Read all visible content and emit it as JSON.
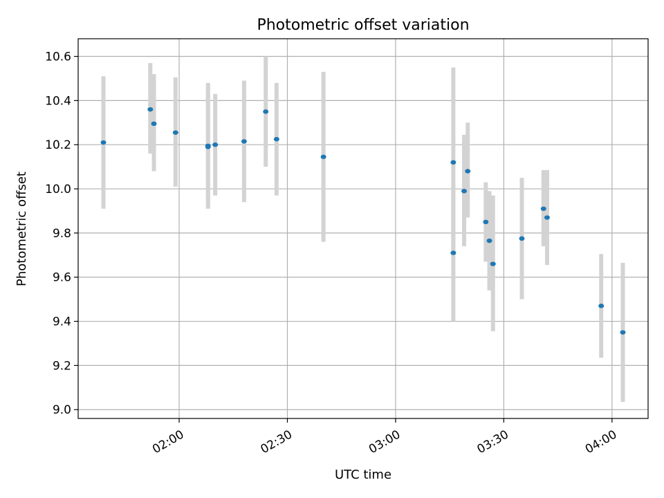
{
  "chart_data": {
    "type": "scatter",
    "title": "Photometric offset variation",
    "xlabel": "UTC time",
    "ylabel": "Photometric offset",
    "grid": true,
    "xlim": [
      "01:32",
      "04:10"
    ],
    "ylim": [
      8.96,
      10.68
    ],
    "x_ticks": [
      "02:00",
      "02:30",
      "03:00",
      "03:30",
      "04:00"
    ],
    "y_ticks": [
      "9.0",
      "9.2",
      "9.4",
      "9.6",
      "9.8",
      "10.0",
      "10.2",
      "10.4",
      "10.6"
    ],
    "point_color": "#1f77b4",
    "errorbar_color": "#d3d3d3",
    "series": [
      {
        "points": [
          {
            "x": "01:39",
            "y": 10.21,
            "ylow": 9.91,
            "yhigh": 10.51
          },
          {
            "x": "01:52",
            "y": 10.36,
            "ylow": 10.16,
            "yhigh": 10.57
          },
          {
            "x": "01:53",
            "y": 10.295,
            "ylow": 10.08,
            "yhigh": 10.52
          },
          {
            "x": "01:59",
            "y": 10.255,
            "ylow": 10.01,
            "yhigh": 10.505
          },
          {
            "x": "02:08",
            "y": 10.195,
            "ylow": 9.91,
            "yhigh": 10.48
          },
          {
            "x": "02:08",
            "y": 10.19,
            "ylow": 9.925,
            "yhigh": 10.46
          },
          {
            "x": "02:10",
            "y": 10.2,
            "ylow": 9.97,
            "yhigh": 10.43
          },
          {
            "x": "02:18",
            "y": 10.215,
            "ylow": 9.94,
            "yhigh": 10.49
          },
          {
            "x": "02:24",
            "y": 10.35,
            "ylow": 10.1,
            "yhigh": 10.6
          },
          {
            "x": "02:27",
            "y": 10.225,
            "ylow": 9.97,
            "yhigh": 10.48
          },
          {
            "x": "02:40",
            "y": 10.145,
            "ylow": 9.76,
            "yhigh": 10.53
          },
          {
            "x": "03:16",
            "y": 10.12,
            "ylow": 9.7,
            "yhigh": 10.55
          },
          {
            "x": "03:16",
            "y": 9.71,
            "ylow": 9.4,
            "yhigh": 10.02
          },
          {
            "x": "03:19",
            "y": 9.99,
            "ylow": 9.74,
            "yhigh": 10.245
          },
          {
            "x": "03:20",
            "y": 10.08,
            "ylow": 9.87,
            "yhigh": 10.3
          },
          {
            "x": "03:25",
            "y": 9.85,
            "ylow": 9.67,
            "yhigh": 10.03
          },
          {
            "x": "03:26",
            "y": 9.765,
            "ylow": 9.54,
            "yhigh": 9.99
          },
          {
            "x": "03:27",
            "y": 9.66,
            "ylow": 9.355,
            "yhigh": 9.97
          },
          {
            "x": "03:35",
            "y": 9.775,
            "ylow": 9.5,
            "yhigh": 10.05
          },
          {
            "x": "03:41",
            "y": 9.91,
            "ylow": 9.74,
            "yhigh": 10.085
          },
          {
            "x": "03:42",
            "y": 9.87,
            "ylow": 9.655,
            "yhigh": 10.085
          },
          {
            "x": "03:57",
            "y": 9.47,
            "ylow": 9.235,
            "yhigh": 9.705
          },
          {
            "x": "04:03",
            "y": 9.35,
            "ylow": 9.035,
            "yhigh": 9.665
          }
        ]
      }
    ]
  }
}
